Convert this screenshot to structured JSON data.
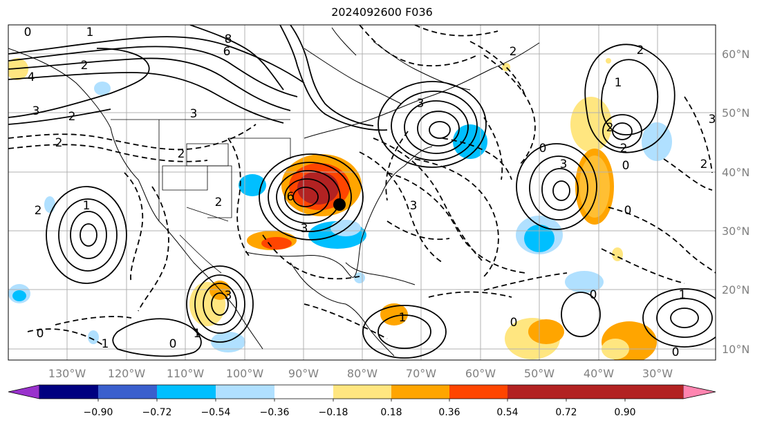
{
  "title": "2024092600 F036",
  "lon_labels": [
    "130°W",
    "120°W",
    "110°W",
    "100°W",
    "90°W",
    "80°W",
    "70°W",
    "60°W",
    "50°W",
    "40°W",
    "30°W"
  ],
  "lat_labels": [
    "60°N",
    "50°N",
    "40°N",
    "30°N",
    "20°N",
    "10°N"
  ],
  "colorbar": {
    "tick_labels": [
      "−0.90",
      "−0.72",
      "−0.54",
      "−0.36",
      "−0.18",
      "0.18",
      "0.36",
      "0.54",
      "0.72",
      "0.90"
    ],
    "colors": [
      "#9932cc",
      "#000080",
      "#3a5fcd",
      "#00bfff",
      "#b0e0ff",
      "#ffffff",
      "#ffe680",
      "#ffa500",
      "#ff4500",
      "#b22222",
      "#ff85b0"
    ]
  },
  "contour_labels": [
    "0",
    "1",
    "2",
    "4",
    "3",
    "2",
    "2",
    "6",
    "8",
    "3",
    "2",
    "6",
    "3",
    "2",
    "2",
    "3",
    "2",
    "1",
    "0",
    "2",
    "2",
    "3",
    "0",
    "3",
    "2",
    "0",
    "2",
    "1",
    "3",
    "0",
    "1",
    "0",
    "1",
    "1",
    "0",
    "0",
    "1",
    "0",
    "3"
  ]
}
